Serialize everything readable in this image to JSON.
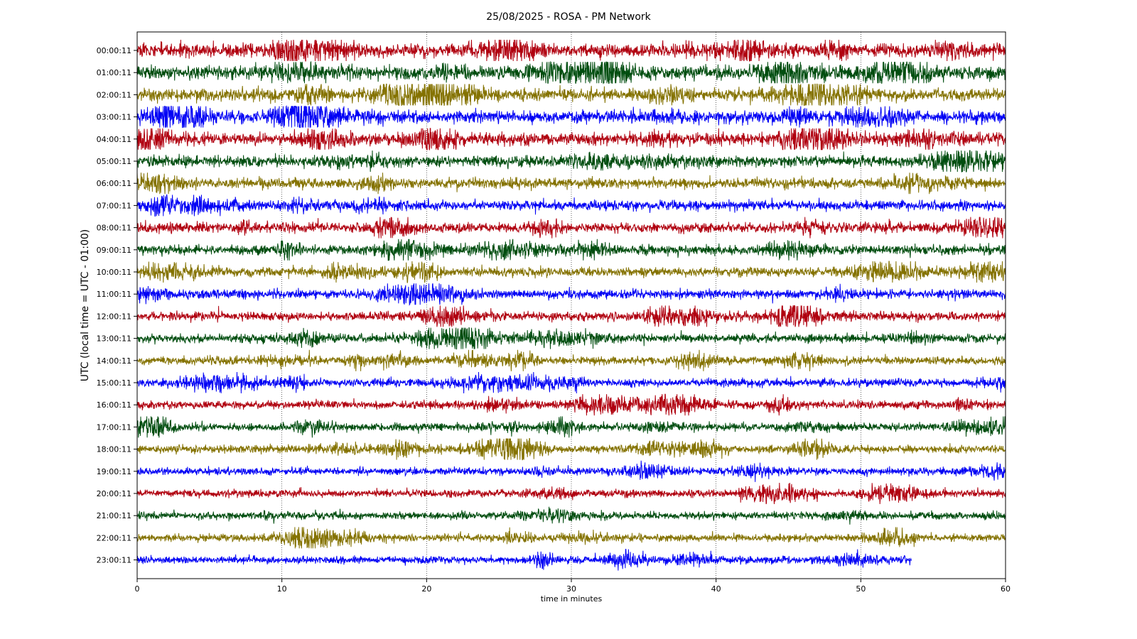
{
  "chart_data": {
    "type": "line",
    "title": "25/08/2025 - ROSA - PM Network",
    "xlabel": "time in minutes",
    "ylabel": "UTC (local time = UTC - 01:00)",
    "xlim": [
      0,
      60
    ],
    "xticks": [
      0,
      10,
      20,
      30,
      40,
      50,
      60
    ],
    "grid": "vertical dotted at x ticks",
    "colors": [
      "#b0000f",
      "#004d0f",
      "#847200",
      "#0000f5"
    ],
    "rows": [
      {
        "label": "00:00:11",
        "end_min": 60,
        "amp": 1.0
      },
      {
        "label": "01:00:11",
        "end_min": 60,
        "amp": 0.95
      },
      {
        "label": "02:00:11",
        "end_min": 60,
        "amp": 0.85
      },
      {
        "label": "03:00:11",
        "end_min": 60,
        "amp": 0.9
      },
      {
        "label": "04:00:11",
        "end_min": 60,
        "amp": 0.8
      },
      {
        "label": "05:00:11",
        "end_min": 60,
        "amp": 0.7
      },
      {
        "label": "06:00:11",
        "end_min": 60,
        "amp": 0.6
      },
      {
        "label": "07:00:11",
        "end_min": 60,
        "amp": 0.55
      },
      {
        "label": "08:00:11",
        "end_min": 60,
        "amp": 0.55
      },
      {
        "label": "09:00:11",
        "end_min": 60,
        "amp": 0.5
      },
      {
        "label": "10:00:11",
        "end_min": 60,
        "amp": 0.45
      },
      {
        "label": "11:00:11",
        "end_min": 60,
        "amp": 0.42
      },
      {
        "label": "12:00:11",
        "end_min": 60,
        "amp": 0.45
      },
      {
        "label": "13:00:11",
        "end_min": 60,
        "amp": 0.38
      },
      {
        "label": "14:00:11",
        "end_min": 60,
        "amp": 0.35
      },
      {
        "label": "15:00:11",
        "end_min": 60,
        "amp": 0.35
      },
      {
        "label": "16:00:11",
        "end_min": 60,
        "amp": 0.32
      },
      {
        "label": "17:00:11",
        "end_min": 60,
        "amp": 0.32
      },
      {
        "label": "18:00:11",
        "end_min": 60,
        "amp": 0.3
      },
      {
        "label": "19:00:11",
        "end_min": 60,
        "amp": 0.28
      },
      {
        "label": "20:00:11",
        "end_min": 60,
        "amp": 0.26
      },
      {
        "label": "21:00:11",
        "end_min": 60,
        "amp": 0.26
      },
      {
        "label": "22:00:11",
        "end_min": 60,
        "amp": 0.24
      },
      {
        "label": "23:00:11",
        "end_min": 53.5,
        "amp": 0.24
      }
    ]
  }
}
